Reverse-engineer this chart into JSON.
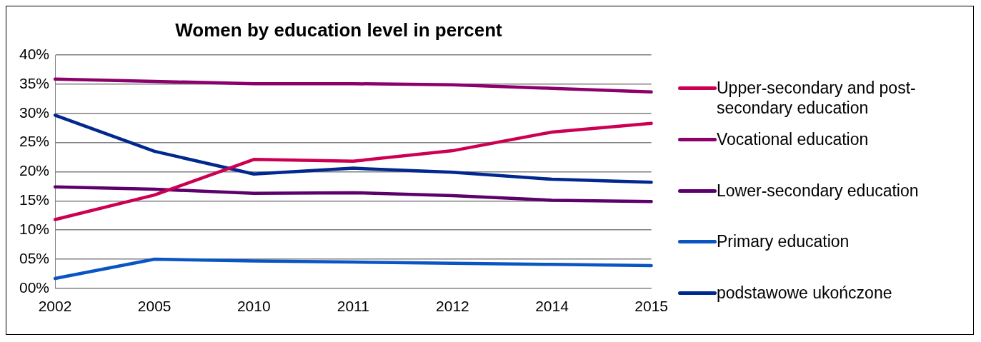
{
  "chart_data": {
    "type": "line",
    "title": "Women by education level in percent",
    "categories": [
      "2002",
      "2005",
      "2010",
      "2011",
      "2012",
      "2014",
      "2015"
    ],
    "series": [
      {
        "name": "Upper-secondary and post-secondary education",
        "color": "#cc0052",
        "values": [
          11.8,
          16.0,
          22.1,
          21.8,
          23.6,
          26.8,
          28.3
        ]
      },
      {
        "name": "Vocational education",
        "color": "#8b006b",
        "values": [
          35.9,
          35.5,
          35.1,
          35.1,
          34.9,
          34.3,
          33.7
        ]
      },
      {
        "name": "Lower-secondary education",
        "color": "#5c006b",
        "values": [
          17.4,
          17.0,
          16.3,
          16.4,
          15.9,
          15.1,
          14.9
        ]
      },
      {
        "name": "Primary education",
        "color": "#0a55c4",
        "values": [
          1.7,
          5.0,
          4.7,
          4.5,
          4.3,
          4.1,
          3.9
        ]
      },
      {
        "name": "podstawowe ukończone",
        "color": "#00288f",
        "values": [
          29.7,
          23.5,
          19.6,
          20.6,
          19.9,
          18.7,
          18.2
        ]
      }
    ],
    "ylim": [
      0,
      40
    ],
    "yticks": [
      {
        "value": 0,
        "label": "00%"
      },
      {
        "value": 5,
        "label": "05%"
      },
      {
        "value": 10,
        "label": "10%"
      },
      {
        "value": 15,
        "label": "15%"
      },
      {
        "value": 20,
        "label": "20%"
      },
      {
        "value": 25,
        "label": "25%"
      },
      {
        "value": 30,
        "label": "30%"
      },
      {
        "value": 35,
        "label": "35%"
      },
      {
        "value": 40,
        "label": "40%"
      }
    ],
    "grid": "y",
    "legend": "right",
    "marker": "none",
    "line_style": "solid"
  }
}
